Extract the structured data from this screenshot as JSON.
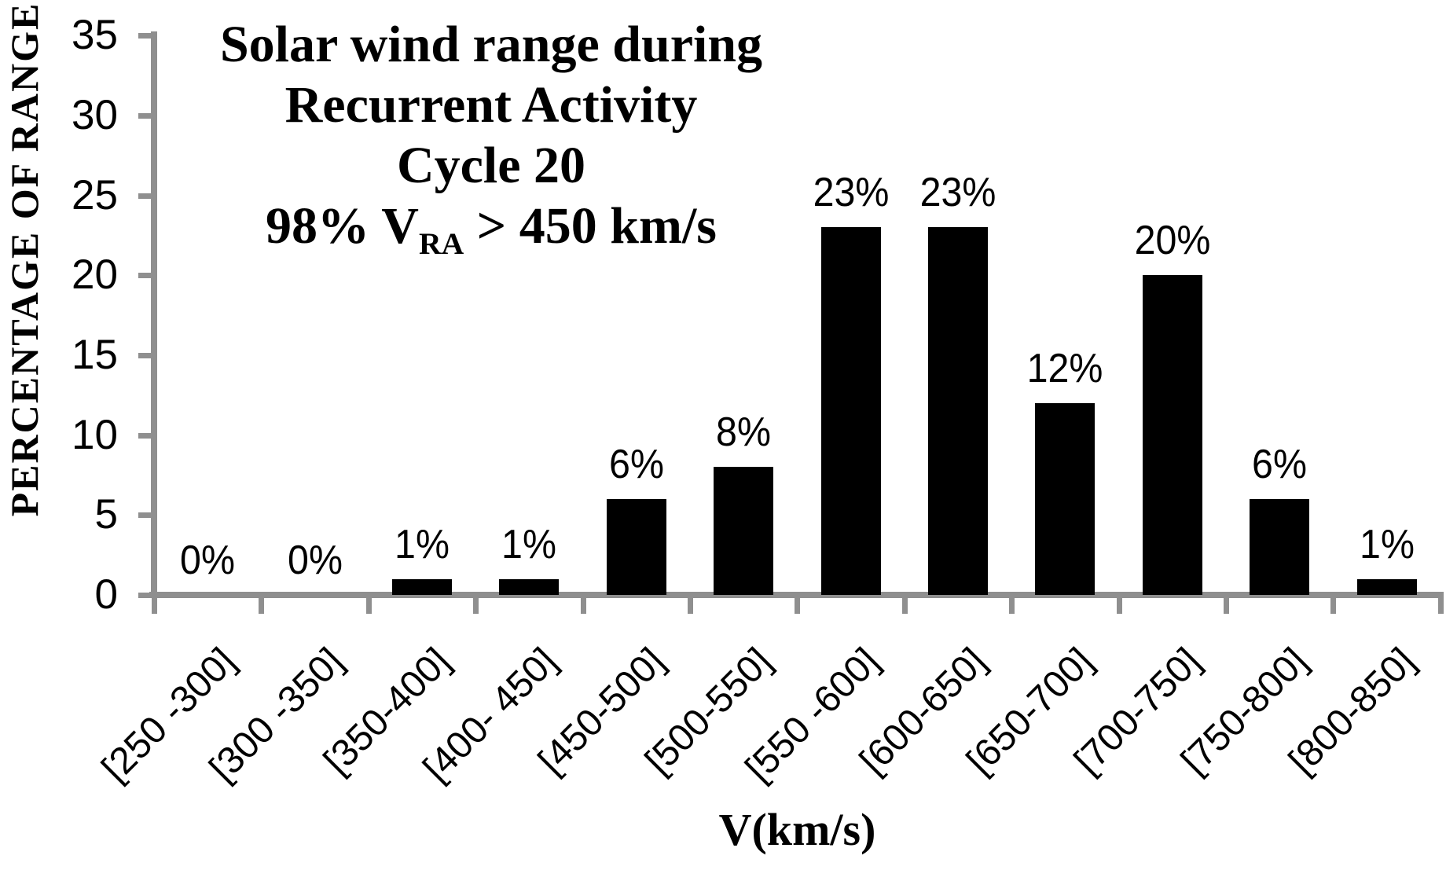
{
  "chart_data": {
    "type": "bar",
    "title_lines": [
      "Solar wind range during",
      "Recurrent Activity",
      "Cycle 20"
    ],
    "subtitle": {
      "prefix": "98% V",
      "sub": "RA",
      "suffix": " > 450 km/s"
    },
    "categories": [
      "[250 -300]",
      "[300 -350]",
      "[350-400]",
      "[400- 450]",
      "[450-500]",
      "[500-550]",
      "[550 -600]",
      "[600-650]",
      "[650-700]",
      "[700-750]",
      "[750-800]",
      "[800-850]"
    ],
    "values": [
      0,
      0,
      1,
      1,
      6,
      8,
      23,
      23,
      12,
      20,
      6,
      1
    ],
    "data_labels": [
      "0%",
      "0%",
      "1%",
      "1%",
      "6%",
      "8%",
      "23%",
      "23%",
      "12%",
      "20%",
      "6%",
      "1%"
    ],
    "xlabel": "V(km/s)",
    "ylabel": "PERCENTAGE OF RANGE",
    "yticks": [
      0,
      5,
      10,
      15,
      20,
      25,
      30,
      35
    ],
    "ylim": [
      0,
      35
    ],
    "grid": false,
    "legend": false,
    "bar_color": "#000000",
    "axis_color": "#8f8f8f",
    "text_color": "#000000"
  }
}
